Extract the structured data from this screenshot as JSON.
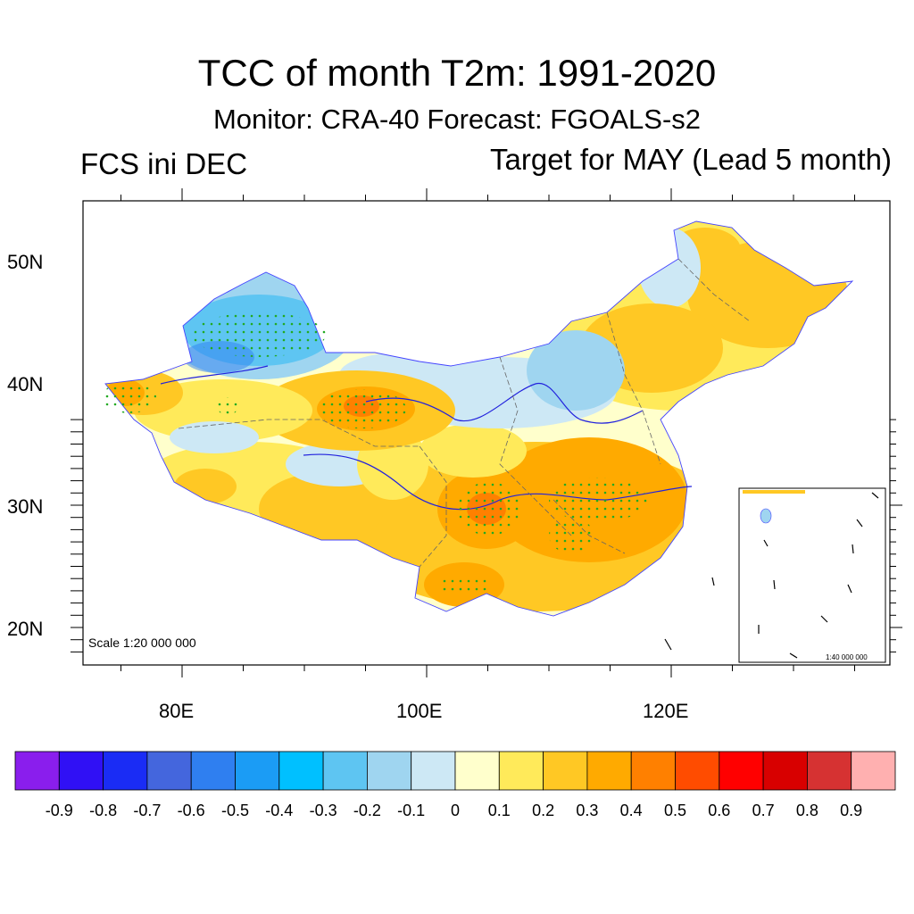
{
  "header": {
    "title": "TCC of month T2m: 1991-2020",
    "subtitle": "Monitor: CRA-40   Forecast: FGOALS-s2",
    "left_label": "FCS ini DEC",
    "right_label": "Target for MAY (Lead 5 month)"
  },
  "map": {
    "scale_text": "Scale 1:20 000 000",
    "inset_scale_text": "1:40 000 000",
    "lat_labels": [
      "50N",
      "40N",
      "30N",
      "20N"
    ],
    "lon_labels": [
      "80E",
      "100E",
      "120E"
    ]
  },
  "colorbar": {
    "colors": [
      "#8a1eed",
      "#3010f5",
      "#1a2cf5",
      "#4466dd",
      "#2f7ff0",
      "#1b9cf5",
      "#00c0ff",
      "#5ec5f2",
      "#9fd5f0",
      "#cde8f5",
      "#ffffcc",
      "#ffea5a",
      "#ffc824",
      "#ffaa00",
      "#ff8000",
      "#ff4c00",
      "#ff0000",
      "#d80000",
      "#d63232",
      "#ffb0b0"
    ],
    "labels": [
      "-0.9",
      "-0.8",
      "-0.7",
      "-0.6",
      "-0.5",
      "-0.4",
      "-0.3",
      "-0.2",
      "-0.1",
      "0",
      "0.1",
      "0.2",
      "0.3",
      "0.4",
      "0.5",
      "0.6",
      "0.7",
      "0.8",
      "0.9"
    ]
  },
  "colors": {
    "neg_strong": "#5ec5f2",
    "neg_weak": "#9fd5f0",
    "neg_faint": "#cde8f5",
    "neutral": "#ffffcc",
    "pos_weak": "#ffea5a",
    "pos_mid": "#ffc824",
    "pos_strong": "#ffaa00",
    "pos_peak": "#ff8000",
    "river": "#2222dd",
    "stipple": "#22aa22"
  }
}
